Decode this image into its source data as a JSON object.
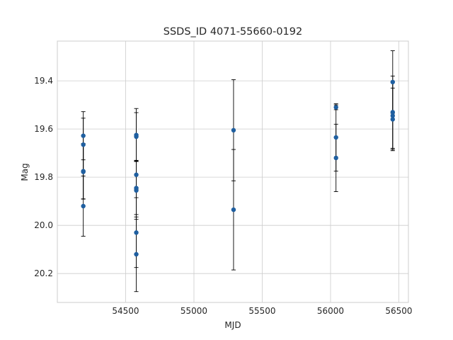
{
  "chart_data": {
    "type": "scatter",
    "title": "SSDS_ID 4071-55660-0192",
    "xlabel": "MJD",
    "ylabel": "Mag",
    "xlim": [
      54000,
      56570
    ],
    "ylim": [
      20.32,
      19.235
    ],
    "y_inverted": true,
    "grid": true,
    "xticks": [
      54500,
      55000,
      55500,
      56000,
      56500
    ],
    "yticks": [
      19.4,
      19.6,
      19.8,
      20.0,
      20.2
    ],
    "ytick_labels": [
      "19.4",
      "19.6",
      "19.8",
      "20.0",
      "20.2"
    ],
    "marker_color": "#1f5fa0",
    "errorbar_color": "#000000",
    "points": [
      {
        "x": 54190,
        "y": 19.628,
        "err": 0.1
      },
      {
        "x": 54190,
        "y": 19.665,
        "err": 0.11
      },
      {
        "x": 54190,
        "y": 19.775,
        "err": 0.115
      },
      {
        "x": 54190,
        "y": 19.778,
        "err": 0.113
      },
      {
        "x": 54190,
        "y": 19.92,
        "err": 0.125
      },
      {
        "x": 54578,
        "y": 19.625,
        "err": 0.11
      },
      {
        "x": 54578,
        "y": 19.632,
        "err": 0.1
      },
      {
        "x": 54578,
        "y": 19.79,
        "err": 0.06
      },
      {
        "x": 54578,
        "y": 19.845,
        "err": 0.11
      },
      {
        "x": 54578,
        "y": 19.855,
        "err": 0.12
      },
      {
        "x": 54578,
        "y": 20.03,
        "err": 0.145
      },
      {
        "x": 54578,
        "y": 20.12,
        "err": 0.155
      },
      {
        "x": 55290,
        "y": 19.605,
        "err": 0.21
      },
      {
        "x": 55290,
        "y": 19.935,
        "err": 0.25
      },
      {
        "x": 56040,
        "y": 19.51,
        "err": 0.01
      },
      {
        "x": 56040,
        "y": 19.635,
        "err": 0.14
      },
      {
        "x": 56040,
        "y": 19.72,
        "err": 0.14
      },
      {
        "x": 56455,
        "y": 19.405,
        "err": 0.13
      },
      {
        "x": 56455,
        "y": 19.53,
        "err": 0.15
      },
      {
        "x": 56455,
        "y": 19.545,
        "err": 0.14
      },
      {
        "x": 56455,
        "y": 19.56,
        "err": 0.13
      }
    ]
  }
}
